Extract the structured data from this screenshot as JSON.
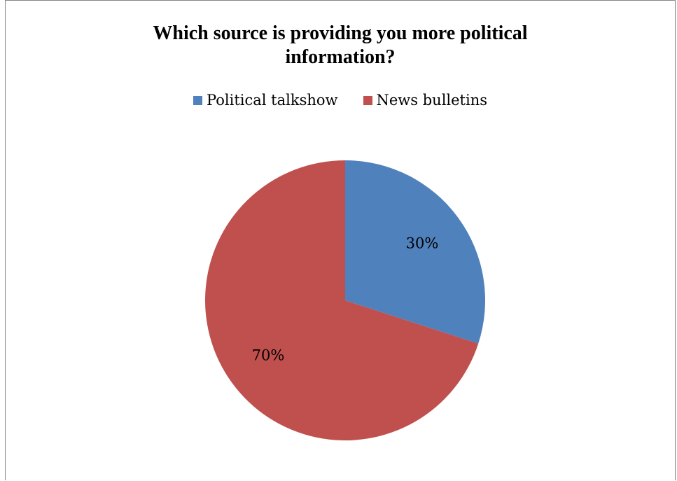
{
  "chart_data": {
    "type": "pie",
    "title": "Which source is providing you more political\ninformation?",
    "legend_position": "top",
    "slices": [
      {
        "name": "Political talkshow",
        "value": 30,
        "label": "30%",
        "color": "#4F81BD"
      },
      {
        "name": "News bulletins",
        "value": 70,
        "label": "70%",
        "color": "#C0504D"
      }
    ]
  }
}
